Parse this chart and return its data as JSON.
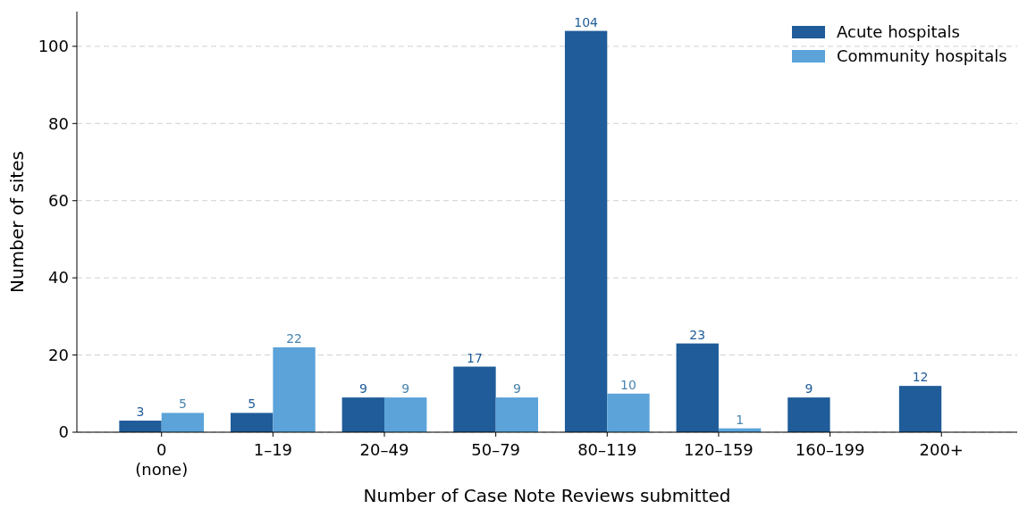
{
  "chart_data": {
    "type": "bar",
    "xlabel": "Number of Case Note Reviews submitted",
    "ylabel": "Number of sites",
    "categories": [
      "0\n(none)",
      "1–19",
      "20–49",
      "50–79",
      "80–119",
      "120–159",
      "160–199",
      "200+"
    ],
    "series": [
      {
        "name": "Acute hospitals",
        "color": "#1f5c99",
        "values": [
          3,
          5,
          9,
          17,
          104,
          23,
          9,
          12
        ]
      },
      {
        "name": "Community hospitals",
        "color": "#5ba3d9",
        "values": [
          5,
          22,
          9,
          9,
          10,
          1,
          null,
          null
        ]
      }
    ],
    "ylim": [
      0,
      109
    ],
    "yticks": [
      0,
      20,
      40,
      60,
      80,
      100
    ],
    "grid": "y",
    "legend": "top right",
    "data_labels": true
  }
}
